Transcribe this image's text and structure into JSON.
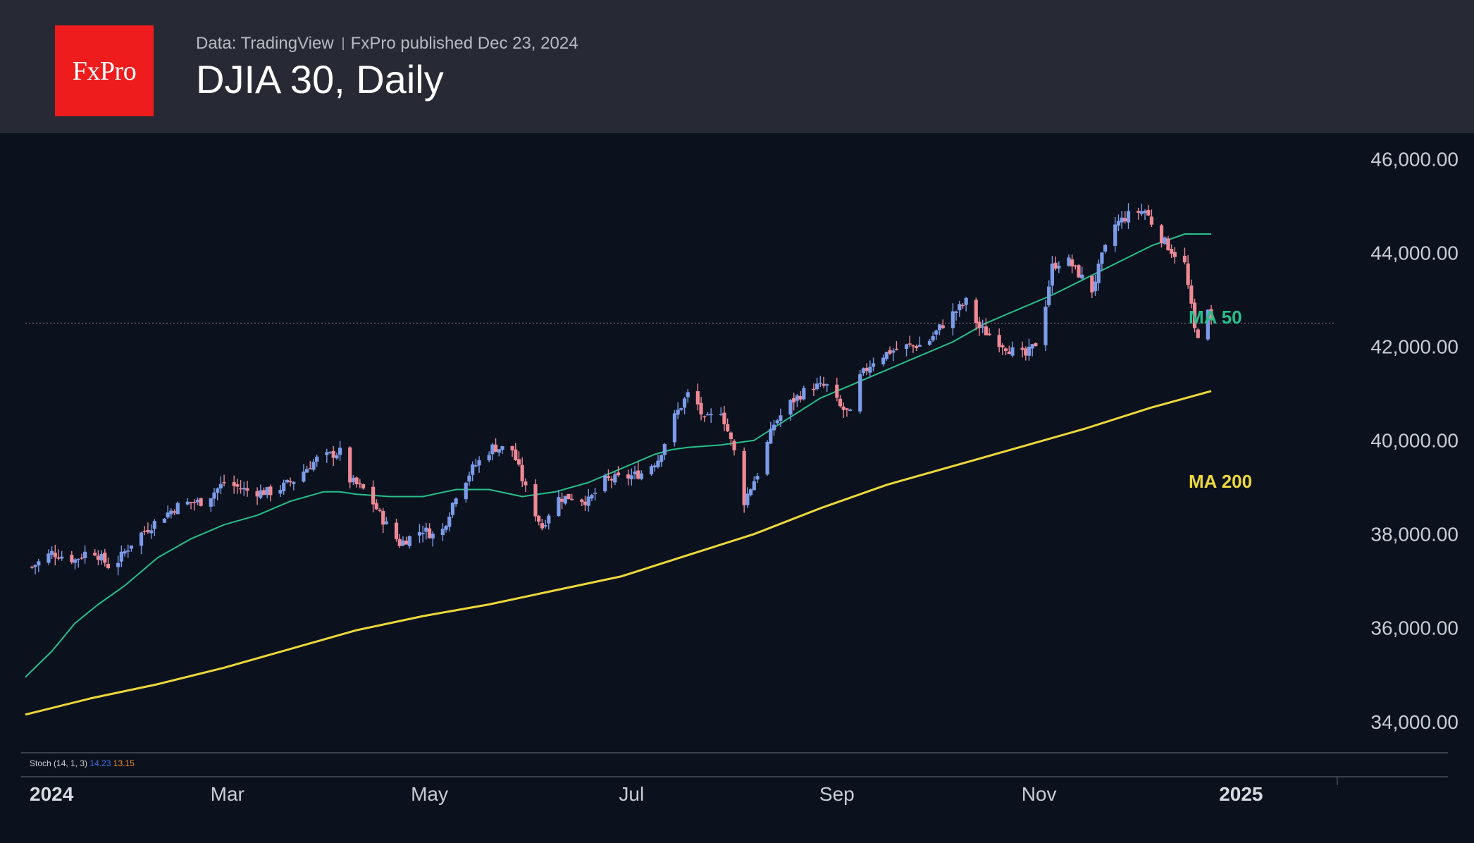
{
  "header": {
    "logo_text": "FxPro",
    "data_source": "Data: TradingView",
    "published": "FxPro published Dec 23, 2024",
    "title": "DJIA 30, Daily"
  },
  "indicator": {
    "name": "Stoch (14, 1, 3)",
    "k_value": "14.23",
    "d_value": "13.15"
  },
  "colors": {
    "up": "#7b9ce9",
    "down": "#ee8a95",
    "ma50": "#26c08a",
    "ma200": "#ecd83a",
    "stoch_k": "#3d6fe0",
    "stoch_d": "#f08a24",
    "price_line": "#9a7a88"
  },
  "chart_data": {
    "type": "candlestick",
    "title": "DJIA 30, Daily",
    "x_tick_labels": [
      "2024",
      "Mar",
      "May",
      "Jul",
      "Sep",
      "Nov",
      "2025"
    ],
    "x_tick_days": [
      1,
      61,
      122,
      183,
      245,
      306,
      367
    ],
    "y_ticks": [
      34000,
      36000,
      38000,
      40000,
      42000,
      44000,
      46000
    ],
    "y_tick_labels": [
      "34,000.00",
      "36,000.00",
      "38,000.00",
      "40,000.00",
      "42,000.00",
      "44,000.00",
      "46,000.00"
    ],
    "ylim": [
      33350,
      46550
    ],
    "xlim_days": [
      0,
      395
    ],
    "current_price": 42500,
    "ohlc_close_path": [
      [
        2,
        37300
      ],
      [
        8,
        37600
      ],
      [
        15,
        37450
      ],
      [
        20,
        37700
      ],
      [
        26,
        37250
      ],
      [
        33,
        37900
      ],
      [
        40,
        38300
      ],
      [
        47,
        38650
      ],
      [
        54,
        38700
      ],
      [
        60,
        39100
      ],
      [
        68,
        38900
      ],
      [
        75,
        38900
      ],
      [
        81,
        39150
      ],
      [
        88,
        39600
      ],
      [
        95,
        39750
      ],
      [
        98,
        39150
      ],
      [
        103,
        38900
      ],
      [
        108,
        38300
      ],
      [
        113,
        37800
      ],
      [
        120,
        38100
      ],
      [
        125,
        37900
      ],
      [
        130,
        38850
      ],
      [
        135,
        39400
      ],
      [
        141,
        39850
      ],
      [
        147,
        39800
      ],
      [
        152,
        38750
      ],
      [
        156,
        38150
      ],
      [
        160,
        38750
      ],
      [
        165,
        38800
      ],
      [
        170,
        38700
      ],
      [
        175,
        39150
      ],
      [
        181,
        39200
      ],
      [
        186,
        39300
      ],
      [
        191,
        39600
      ],
      [
        196,
        40500
      ],
      [
        201,
        41100
      ],
      [
        205,
        40400
      ],
      [
        210,
        40650
      ],
      [
        214,
        39750
      ],
      [
        217,
        38700
      ],
      [
        221,
        39300
      ],
      [
        226,
        40350
      ],
      [
        231,
        40800
      ],
      [
        237,
        41150
      ],
      [
        242,
        41150
      ],
      [
        246,
        40700
      ],
      [
        249,
        40550
      ],
      [
        252,
        41350
      ],
      [
        256,
        41700
      ],
      [
        261,
        41900
      ],
      [
        266,
        42000
      ],
      [
        272,
        42050
      ],
      [
        276,
        42400
      ],
      [
        280,
        42700
      ],
      [
        284,
        42950
      ],
      [
        288,
        42400
      ],
      [
        293,
        42150
      ],
      [
        298,
        41900
      ],
      [
        302,
        41800
      ],
      [
        306,
        42150
      ],
      [
        310,
        43700
      ],
      [
        314,
        43900
      ],
      [
        318,
        43550
      ],
      [
        322,
        43200
      ],
      [
        325,
        43900
      ],
      [
        329,
        44600
      ],
      [
        334,
        44850
      ],
      [
        338,
        44900
      ],
      [
        342,
        44400
      ],
      [
        346,
        44050
      ],
      [
        350,
        43750
      ],
      [
        353,
        42350
      ],
      [
        355,
        42200
      ],
      [
        357,
        42700
      ],
      [
        358,
        42500
      ]
    ],
    "series": [
      {
        "name": "MA 50",
        "days": [
          0,
          8,
          15,
          22,
          30,
          40,
          50,
          60,
          70,
          80,
          90,
          95,
          100,
          110,
          120,
          130,
          140,
          150,
          160,
          170,
          180,
          190,
          195,
          200,
          210,
          220,
          230,
          240,
          250,
          260,
          270,
          280,
          290,
          300,
          310,
          320,
          330,
          340,
          350,
          354,
          358
        ],
        "values": [
          34950,
          35500,
          36100,
          36500,
          36900,
          37500,
          37900,
          38200,
          38400,
          38700,
          38900,
          38900,
          38850,
          38800,
          38800,
          38950,
          38950,
          38800,
          38900,
          39100,
          39400,
          39700,
          39800,
          39850,
          39900,
          40000,
          40450,
          40900,
          41200,
          41500,
          41800,
          42100,
          42500,
          42800,
          43100,
          43450,
          43800,
          44150,
          44400,
          44400,
          44400
        ]
      },
      {
        "name": "MA 200",
        "days": [
          0,
          20,
          40,
          60,
          80,
          100,
          120,
          140,
          160,
          180,
          200,
          220,
          240,
          260,
          280,
          300,
          320,
          340,
          358
        ],
        "values": [
          34150,
          34500,
          34800,
          35150,
          35550,
          35950,
          36250,
          36500,
          36800,
          37100,
          37550,
          38000,
          38550,
          39050,
          39450,
          39850,
          40250,
          40700,
          41050
        ]
      }
    ]
  }
}
